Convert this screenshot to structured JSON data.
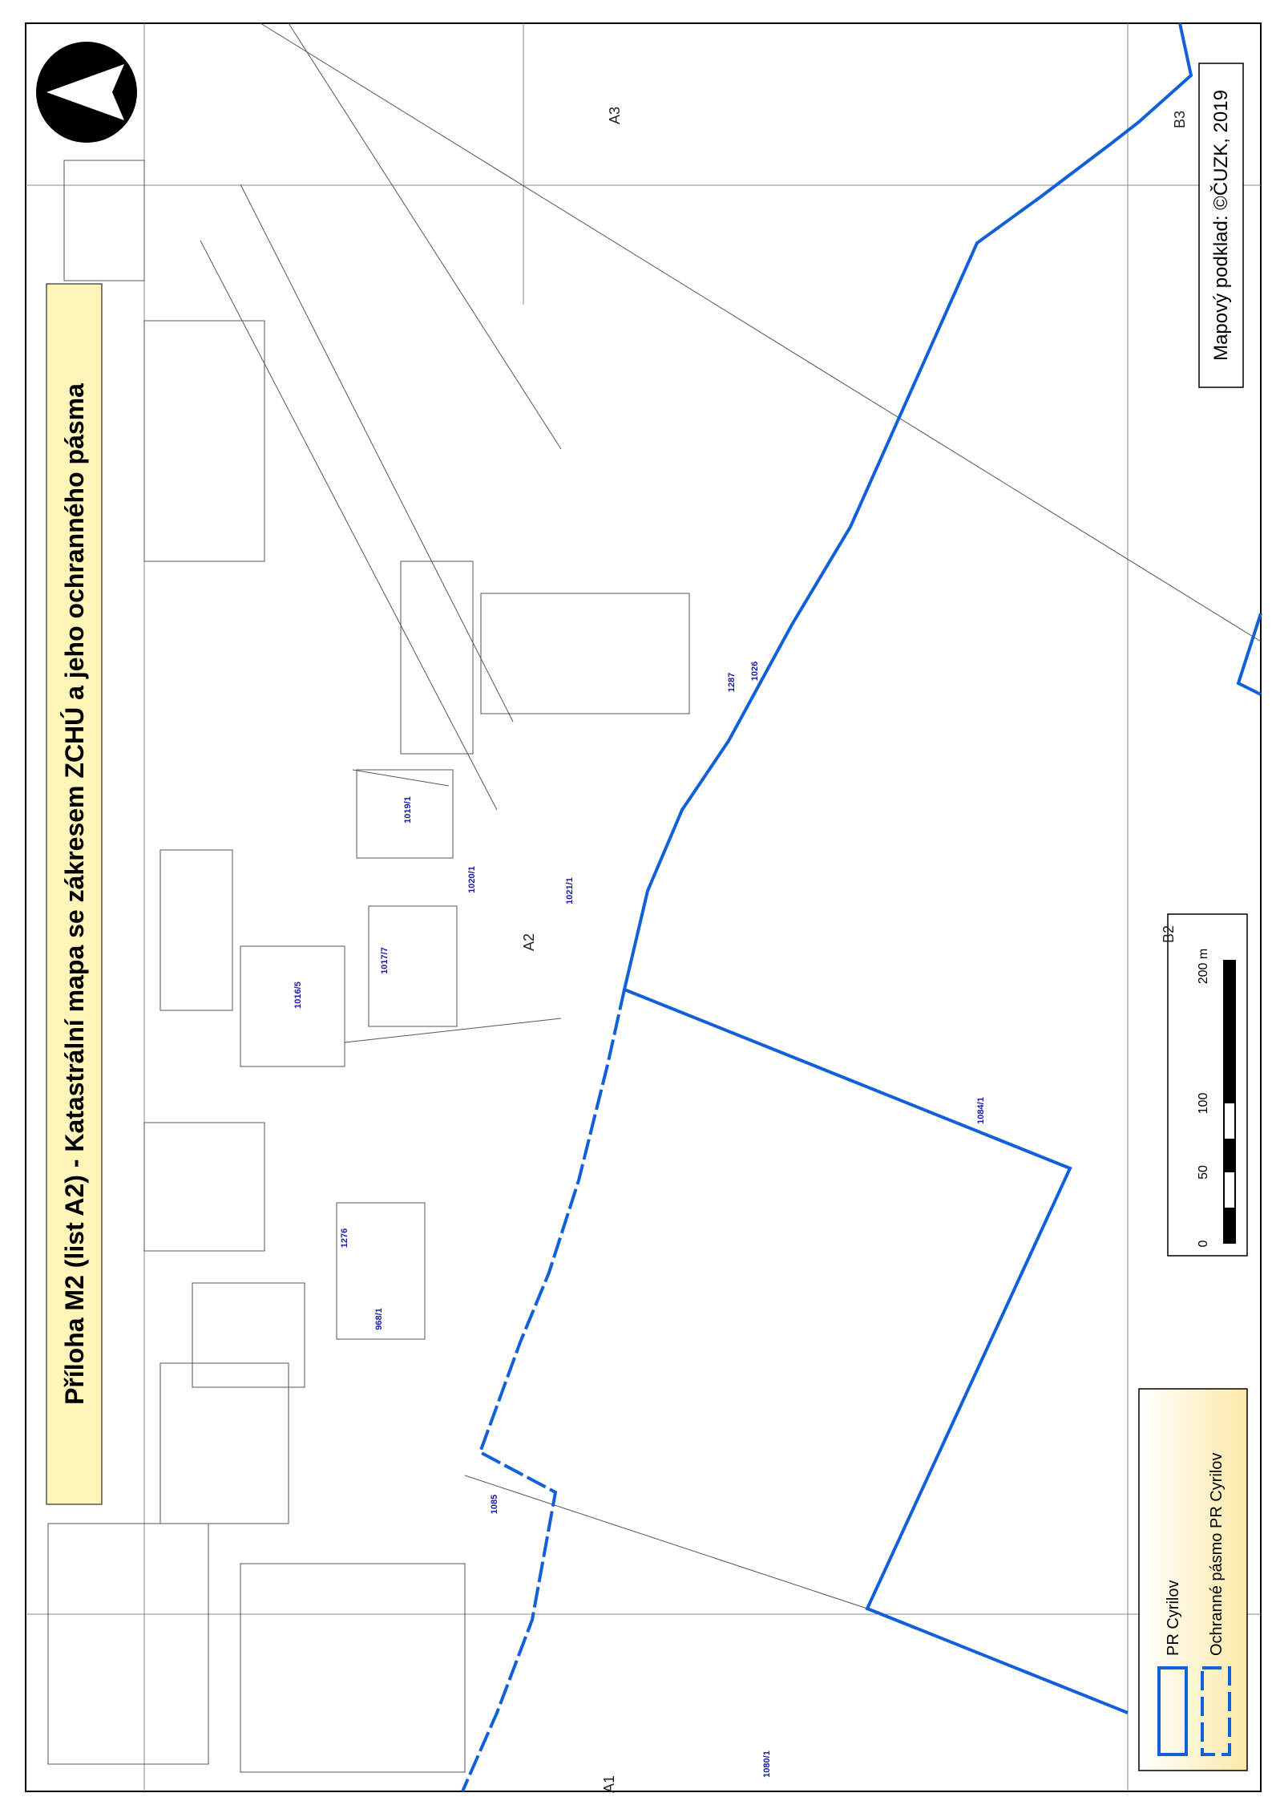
{
  "map": {
    "title": "Příloha M2 (list A2) - Katastrální mapa se zákresem ZCHÚ a jeho ochranného pásma",
    "credit": "Mapový podklad: ©ČUZK, 2019",
    "sheet_labels": [
      "A1",
      "A2",
      "A3",
      "B2",
      "B3"
    ],
    "legend": [
      "PR Cyrilov",
      "Ochranné pásmo PR Cyrilov"
    ],
    "scale_labels": [
      "0",
      "50",
      "100",
      "200 m"
    ],
    "parcels": [
      "1084/1",
      "1085",
      "1021/1",
      "1020/1",
      "1080/1",
      "1026",
      "1287",
      "1016/5",
      "1017/7",
      "1019/1",
      "968/1",
      "1276"
    ]
  }
}
